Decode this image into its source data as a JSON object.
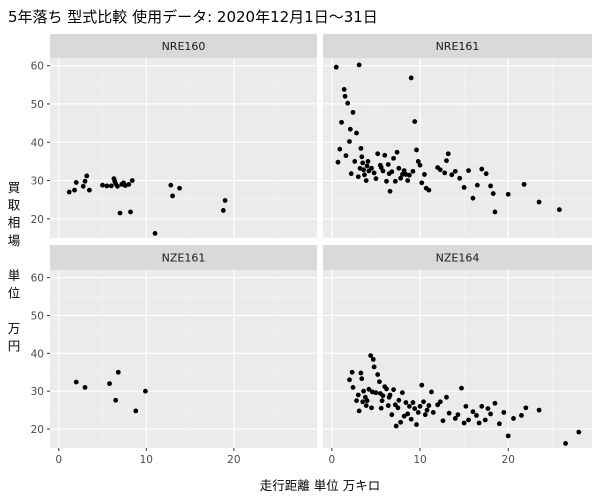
{
  "chart_data": {
    "type": "scatter",
    "title": "5年落ち 型式比較 使用データ: 2020年12月1日～31日",
    "xlabel": "走行距離 単位 万キロ",
    "ylabel_lines": [
      "買",
      "取",
      "相",
      "場",
      "",
      "単",
      "位",
      "",
      "万",
      "円"
    ],
    "xlim": [
      -1,
      29.5
    ],
    "ylim": [
      15,
      62
    ],
    "x_ticks": [
      0,
      10,
      20
    ],
    "y_ticks": [
      20,
      30,
      40,
      50,
      60
    ],
    "grid": true,
    "colors": {
      "panel_bg": "#ebebeb",
      "strip_bg": "#d9d9d9",
      "grid_major": "#ffffff",
      "point": "#000000"
    },
    "panels": [
      {
        "name": "NRE160",
        "points": [
          [
            1.2,
            27
          ],
          [
            1.8,
            27.5
          ],
          [
            2.0,
            29.5
          ],
          [
            2.8,
            28.5
          ],
          [
            3.0,
            29.8
          ],
          [
            3.2,
            31.2
          ],
          [
            3.5,
            27.5
          ],
          [
            5.0,
            28.8
          ],
          [
            5.5,
            28.6
          ],
          [
            6.0,
            28.6
          ],
          [
            6.3,
            30.5
          ],
          [
            6.4,
            29.8
          ],
          [
            6.5,
            29.2
          ],
          [
            6.7,
            28.5
          ],
          [
            7.0,
            21.5
          ],
          [
            7.2,
            29
          ],
          [
            7.4,
            29.4
          ],
          [
            7.6,
            28.7
          ],
          [
            8.0,
            29
          ],
          [
            8.2,
            21.8
          ],
          [
            8.4,
            30
          ],
          [
            11.0,
            16.2
          ],
          [
            12.8,
            28.8
          ],
          [
            13.0,
            26
          ],
          [
            13.8,
            28
          ],
          [
            18.8,
            22.2
          ],
          [
            19.0,
            24.8
          ]
        ]
      },
      {
        "name": "NRE161",
        "points": [
          [
            0.5,
            59.6
          ],
          [
            0.7,
            34.8
          ],
          [
            0.9,
            38.2
          ],
          [
            1.1,
            45.2
          ],
          [
            1.4,
            53.8
          ],
          [
            1.5,
            52
          ],
          [
            1.6,
            36.5
          ],
          [
            1.8,
            50.2
          ],
          [
            2.0,
            40.2
          ],
          [
            2.1,
            43.4
          ],
          [
            2.2,
            31.8
          ],
          [
            2.4,
            47.8
          ],
          [
            2.6,
            35
          ],
          [
            2.8,
            42.4
          ],
          [
            3.0,
            31
          ],
          [
            3.1,
            60.2
          ],
          [
            3.2,
            33.2
          ],
          [
            3.3,
            38.4
          ],
          [
            3.4,
            36.2
          ],
          [
            3.5,
            34.6
          ],
          [
            3.6,
            32.8
          ],
          [
            3.7,
            31.5
          ],
          [
            3.9,
            30
          ],
          [
            4.0,
            33.8
          ],
          [
            4.1,
            35
          ],
          [
            4.2,
            32.5
          ],
          [
            4.5,
            33.2
          ],
          [
            4.8,
            32
          ],
          [
            5.0,
            30.5
          ],
          [
            5.2,
            37
          ],
          [
            5.5,
            34
          ],
          [
            5.6,
            33.4
          ],
          [
            5.8,
            32.5
          ],
          [
            6.0,
            36.6
          ],
          [
            6.2,
            29.8
          ],
          [
            6.4,
            34.2
          ],
          [
            6.5,
            31.8
          ],
          [
            6.6,
            27.2
          ],
          [
            6.8,
            32.3
          ],
          [
            7.0,
            35.8
          ],
          [
            7.2,
            29.8
          ],
          [
            7.4,
            37.4
          ],
          [
            7.6,
            33.2
          ],
          [
            7.8,
            30.6
          ],
          [
            8.0,
            31.6
          ],
          [
            8.2,
            32.6
          ],
          [
            8.4,
            31.6
          ],
          [
            8.6,
            30
          ],
          [
            8.8,
            31.4
          ],
          [
            9.0,
            56.8
          ],
          [
            9.2,
            32.4
          ],
          [
            9.4,
            45.4
          ],
          [
            9.6,
            38
          ],
          [
            9.8,
            35
          ],
          [
            10.0,
            34
          ],
          [
            10.2,
            29.4
          ],
          [
            10.5,
            31.6
          ],
          [
            10.7,
            28
          ],
          [
            11.0,
            27.5
          ],
          [
            12.0,
            33.4
          ],
          [
            12.3,
            32.8
          ],
          [
            12.8,
            32
          ],
          [
            13.0,
            35.2
          ],
          [
            13.2,
            37
          ],
          [
            13.6,
            31.5
          ],
          [
            14.0,
            32.4
          ],
          [
            14.5,
            30.6
          ],
          [
            15.0,
            28.2
          ],
          [
            15.5,
            32.6
          ],
          [
            16.0,
            25.4
          ],
          [
            16.5,
            28.8
          ],
          [
            17.0,
            33
          ],
          [
            17.5,
            31.8
          ],
          [
            18.0,
            28.6
          ],
          [
            18.3,
            26.6
          ],
          [
            18.5,
            21.8
          ],
          [
            20.0,
            26.4
          ],
          [
            21.8,
            29
          ],
          [
            23.5,
            24.4
          ],
          [
            25.8,
            22.4
          ]
        ]
      },
      {
        "name": "NZE161",
        "points": [
          [
            2.0,
            32.4
          ],
          [
            3.0,
            31
          ],
          [
            5.8,
            32
          ],
          [
            6.5,
            27.6
          ],
          [
            6.8,
            35
          ],
          [
            8.8,
            24.8
          ],
          [
            9.9,
            30
          ]
        ]
      },
      {
        "name": "NZE164",
        "points": [
          [
            2.0,
            33
          ],
          [
            2.3,
            35
          ],
          [
            2.4,
            31
          ],
          [
            2.8,
            27.5
          ],
          [
            3.0,
            29
          ],
          [
            3.1,
            24.8
          ],
          [
            3.3,
            34.8
          ],
          [
            3.4,
            33.3
          ],
          [
            3.5,
            27.2
          ],
          [
            3.6,
            30
          ],
          [
            3.8,
            28.4
          ],
          [
            3.9,
            26.2
          ],
          [
            4.0,
            27.5
          ],
          [
            4.2,
            30.5
          ],
          [
            4.4,
            39.4
          ],
          [
            4.5,
            25.6
          ],
          [
            4.6,
            29.8
          ],
          [
            4.7,
            38.4
          ],
          [
            4.8,
            36.4
          ],
          [
            5.0,
            29.6
          ],
          [
            5.2,
            34.4
          ],
          [
            5.4,
            32.5
          ],
          [
            5.5,
            29.4
          ],
          [
            5.6,
            25.5
          ],
          [
            5.7,
            27.5
          ],
          [
            5.8,
            28.8
          ],
          [
            6.0,
            31.2
          ],
          [
            6.2,
            30.6
          ],
          [
            6.4,
            26.2
          ],
          [
            6.5,
            28.4
          ],
          [
            6.6,
            29
          ],
          [
            6.8,
            23.8
          ],
          [
            7.0,
            30.4
          ],
          [
            7.2,
            26.4
          ],
          [
            7.3,
            20.8
          ],
          [
            7.5,
            25.6
          ],
          [
            7.6,
            27.6
          ],
          [
            7.8,
            21.8
          ],
          [
            8.0,
            29.6
          ],
          [
            8.2,
            23.4
          ],
          [
            8.4,
            27
          ],
          [
            8.6,
            24
          ],
          [
            8.8,
            26
          ],
          [
            9.0,
            22.6
          ],
          [
            9.2,
            27
          ],
          [
            9.4,
            25.4
          ],
          [
            9.6,
            21.2
          ],
          [
            9.8,
            24.4
          ],
          [
            10.0,
            26
          ],
          [
            10.2,
            31.6
          ],
          [
            10.4,
            27.2
          ],
          [
            10.6,
            23.8
          ],
          [
            10.8,
            25
          ],
          [
            11.0,
            26.2
          ],
          [
            11.3,
            29.8
          ],
          [
            11.5,
            24.4
          ],
          [
            12.0,
            26.4
          ],
          [
            12.3,
            27.2
          ],
          [
            12.6,
            22.2
          ],
          [
            13.0,
            28.4
          ],
          [
            13.3,
            24.2
          ],
          [
            14.0,
            22.8
          ],
          [
            14.3,
            23.8
          ],
          [
            14.7,
            30.8
          ],
          [
            15.0,
            21.6
          ],
          [
            15.2,
            26
          ],
          [
            15.5,
            22.4
          ],
          [
            16.0,
            24.6
          ],
          [
            16.4,
            23.6
          ],
          [
            16.7,
            21.6
          ],
          [
            17.0,
            26
          ],
          [
            17.4,
            22.4
          ],
          [
            17.7,
            25.4
          ],
          [
            18.0,
            24
          ],
          [
            18.5,
            26.8
          ],
          [
            19.0,
            21.4
          ],
          [
            19.5,
            24.4
          ],
          [
            20.0,
            18.2
          ],
          [
            20.6,
            22.8
          ],
          [
            21.5,
            23.6
          ],
          [
            22.0,
            25.6
          ],
          [
            23.5,
            25
          ],
          [
            26.5,
            16.2
          ],
          [
            28.0,
            19.2
          ]
        ]
      }
    ]
  }
}
